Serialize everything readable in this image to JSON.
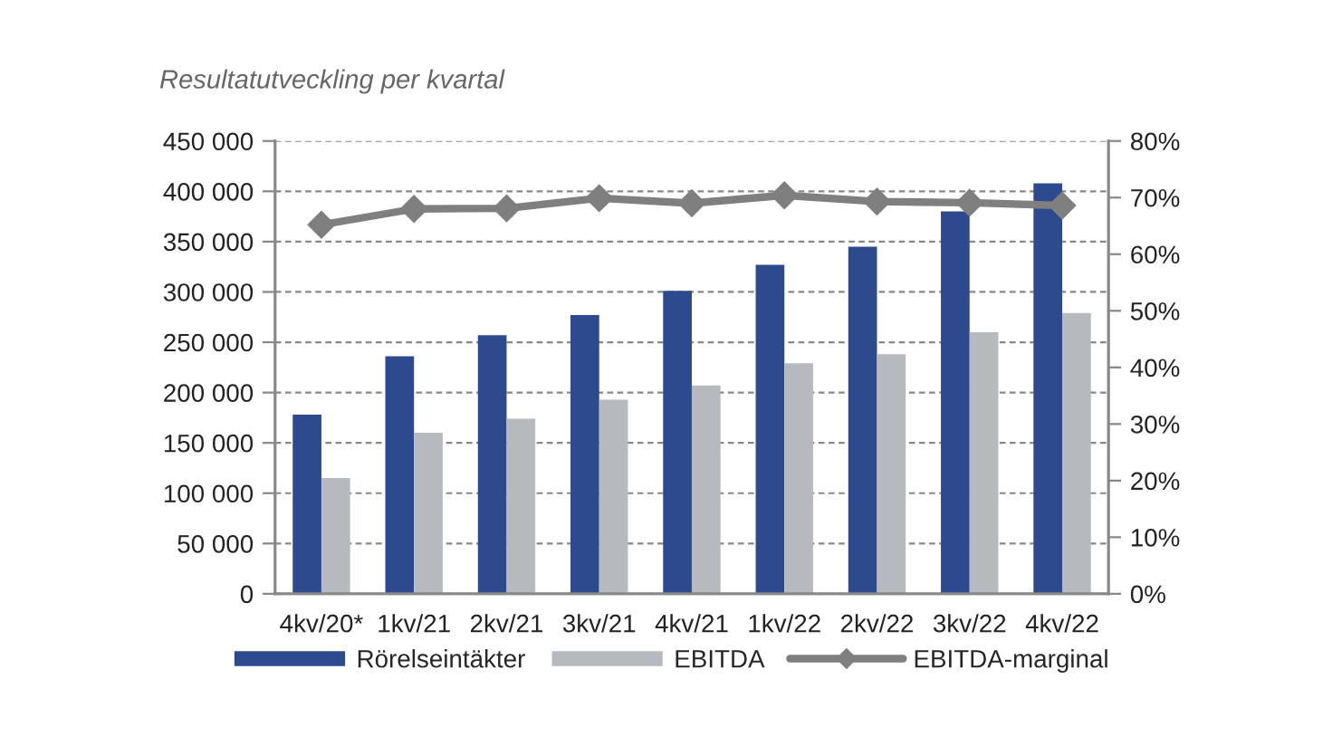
{
  "chart_data": {
    "type": "bar",
    "title": "Resultatutveckling per kvartal",
    "categories": [
      "4kv/20*",
      "1kv/21",
      "2kv/21",
      "3kv/21",
      "4kv/21",
      "1kv/22",
      "2kv/22",
      "3kv/22",
      "4kv/22"
    ],
    "series": [
      {
        "name": "Rörelseintäkter",
        "color": "#2e4a8f",
        "values": [
          178000,
          236000,
          257000,
          277000,
          301000,
          327000,
          345000,
          380000,
          408000
        ]
      },
      {
        "name": "EBITDA",
        "color": "#b6babe",
        "values": [
          115000,
          160000,
          174000,
          193000,
          207000,
          229000,
          238000,
          260000,
          279000
        ]
      },
      {
        "name": "EBITDA-marginal",
        "type": "line",
        "axis": "y2",
        "color": "#7f7f7f",
        "values": [
          65.2,
          68.0,
          68.1,
          69.9,
          69.0,
          70.4,
          69.3,
          69.1,
          68.6
        ]
      }
    ],
    "ylim": [
      0,
      450000
    ],
    "yticks": [
      {
        "value": 0,
        "label": "0"
      },
      {
        "value": 50000,
        "label": "50 000"
      },
      {
        "value": 100000,
        "label": "100 000"
      },
      {
        "value": 150000,
        "label": "150 000"
      },
      {
        "value": 200000,
        "label": "200 000"
      },
      {
        "value": 250000,
        "label": "250 000"
      },
      {
        "value": 300000,
        "label": "300 000"
      },
      {
        "value": 350000,
        "label": "350 000"
      },
      {
        "value": 400000,
        "label": "400 000"
      },
      {
        "value": 450000,
        "label": "450 000"
      }
    ],
    "y2lim": [
      0,
      80
    ],
    "y2ticks": [
      {
        "value": 0,
        "label": "0%"
      },
      {
        "value": 10,
        "label": "10%"
      },
      {
        "value": 20,
        "label": "20%"
      },
      {
        "value": 30,
        "label": "30%"
      },
      {
        "value": 40,
        "label": "40%"
      },
      {
        "value": 50,
        "label": "50%"
      },
      {
        "value": 60,
        "label": "60%"
      },
      {
        "value": 70,
        "label": "70%"
      },
      {
        "value": 80,
        "label": "80%"
      }
    ],
    "grid": "y",
    "legend": "bottom",
    "marker": "diamond",
    "line_style": "solid"
  }
}
